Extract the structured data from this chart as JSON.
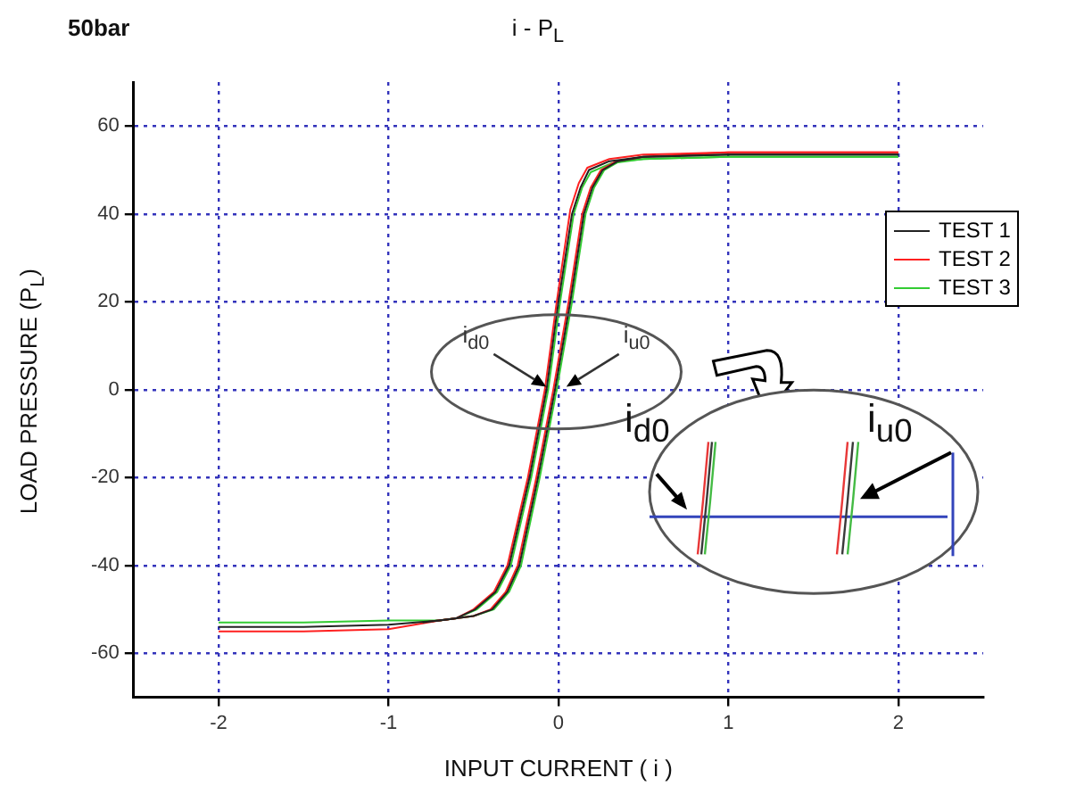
{
  "chart_data": {
    "type": "line",
    "title": "i - P$_{L}$",
    "subtitle": "50bar",
    "xlabel": "INPUT CURRENT ( i )",
    "ylabel": "LOAD PRESSURE (P$_{L}$)",
    "xlim": [
      -2.5,
      2.5
    ],
    "xticks": [
      -2,
      -1,
      0,
      1,
      2
    ],
    "ylim": [
      -70,
      70
    ],
    "yticks": [
      -60,
      -40,
      -20,
      0,
      20,
      40,
      60
    ],
    "grid": true,
    "legend": "right",
    "marker": "none",
    "line_style": "solid",
    "series": [
      {
        "name": "TEST 1",
        "color": "#222222",
        "x": [
          -2,
          -1.5,
          -1,
          -0.7,
          -0.5,
          -0.39,
          -0.3,
          -0.23,
          -0.12,
          -0.02,
          0.07,
          0.15,
          0.2,
          0.26,
          0.35,
          0.5,
          1,
          1.5,
          2
        ],
        "values": [
          -54,
          -54,
          -53.5,
          -52.5,
          -51.5,
          -50,
          -46,
          -40,
          -20,
          0,
          20,
          40,
          46,
          50,
          52,
          53,
          53.5,
          53.5,
          53.5
        ]
      },
      {
        "color": "#222222",
        "x": [
          -0.8,
          -0.6,
          -0.49,
          -0.37,
          -0.29,
          -0.17,
          -0.07,
          0,
          0.08,
          0.13,
          0.18,
          0.3,
          0.5,
          1,
          1.5,
          2
        ],
        "values": [
          -53,
          -52,
          -50,
          -46,
          -40,
          -20,
          0,
          20,
          40,
          46,
          50,
          52,
          53,
          53.5,
          53.5,
          53.5
        ]
      },
      {
        "name": "TEST 2",
        "color": "#ff2020",
        "x": [
          -2,
          -1.5,
          -1,
          -0.7,
          -0.5,
          -0.4,
          -0.31,
          -0.24,
          -0.13,
          -0.03,
          0.06,
          0.14,
          0.19,
          0.25,
          0.34,
          0.5,
          1,
          1.5,
          2
        ],
        "values": [
          -55,
          -55,
          -54.5,
          -52.5,
          -51.5,
          -50,
          -46,
          -40,
          -20,
          0,
          20,
          40,
          46,
          50,
          52,
          53,
          54,
          54,
          54
        ]
      },
      {
        "color": "#ff2020",
        "x": [
          -0.8,
          -0.6,
          -0.5,
          -0.38,
          -0.3,
          -0.18,
          -0.08,
          -0.01,
          0.07,
          0.12,
          0.17,
          0.3,
          0.5,
          1,
          1.5,
          2
        ],
        "values": [
          -53,
          -52,
          -50,
          -46,
          -40,
          -20,
          0,
          20,
          41,
          47,
          50.5,
          52.5,
          53.5,
          54,
          54,
          54
        ]
      },
      {
        "name": "TEST 3",
        "color": "#33cc33",
        "x": [
          -2,
          -1.5,
          -1,
          -0.7,
          -0.5,
          -0.38,
          -0.29,
          -0.22,
          -0.11,
          -0.01,
          0.08,
          0.16,
          0.21,
          0.27,
          0.36,
          0.5,
          1,
          1.5,
          2
        ],
        "values": [
          -53,
          -53,
          -52.5,
          -52.5,
          -51.5,
          -50,
          -46,
          -40,
          -20,
          0,
          20,
          40,
          46,
          50,
          52,
          52.5,
          53,
          53,
          53
        ]
      },
      {
        "color": "#33cc33",
        "x": [
          -0.8,
          -0.6,
          -0.48,
          -0.36,
          -0.28,
          -0.16,
          -0.06,
          0.01,
          0.09,
          0.14,
          0.19,
          0.31,
          0.5,
          1,
          1.5,
          2
        ],
        "values": [
          -53,
          -52,
          -50,
          -46,
          -40,
          -20,
          0,
          20,
          40,
          46,
          49.5,
          51.5,
          52.5,
          53,
          53,
          53
        ]
      }
    ],
    "annotations": [
      "i$_{d0}$",
      "i$_{u0}$",
      "i$_{d0}$",
      "i$_{u0}$"
    ]
  }
}
